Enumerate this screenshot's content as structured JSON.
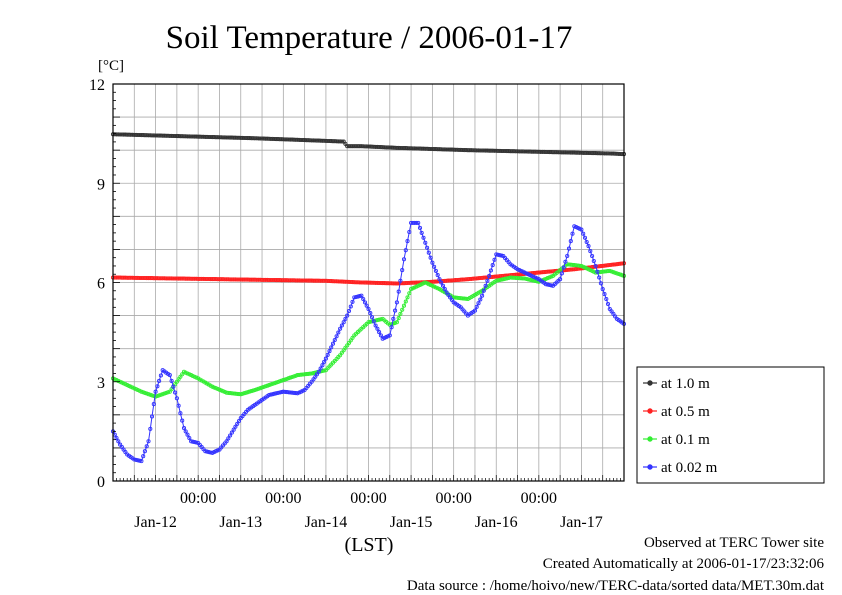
{
  "chart_data": {
    "type": "line",
    "title": "Soil Temperature / 2006-01-17",
    "yunit": "[°C]",
    "xlabel": "(LST)",
    "ylim": [
      0,
      12
    ],
    "yticks": [
      0,
      3,
      6,
      9,
      12
    ],
    "xlim_hours": [
      0,
      144
    ],
    "xtick_labels": [
      "00:00",
      "00:00",
      "00:00",
      "00:00",
      "00:00"
    ],
    "xday_labels": [
      "Jan-12",
      "Jan-13",
      "Jan-14",
      "Jan-15",
      "Jan-16",
      "Jan-17"
    ],
    "grid": true,
    "legend_position": "right",
    "series": [
      {
        "name": "at 1.0 m",
        "color": "#333333",
        "x": [
          0,
          20,
          40,
          55,
          65,
          66,
          70,
          80,
          100,
          120,
          140,
          144
        ],
        "y": [
          10.48,
          10.42,
          10.36,
          10.3,
          10.26,
          10.12,
          10.12,
          10.07,
          10.0,
          9.95,
          9.9,
          9.88
        ]
      },
      {
        "name": "at 0.5 m",
        "color": "#ff2020",
        "x": [
          0,
          30,
          60,
          70,
          80,
          90,
          100,
          110,
          120,
          130,
          144
        ],
        "y": [
          6.15,
          6.1,
          6.05,
          6.0,
          5.97,
          6.02,
          6.1,
          6.2,
          6.3,
          6.4,
          6.58
        ]
      },
      {
        "name": "at 0.1 m",
        "color": "#33ee33",
        "x": [
          0,
          4,
          8,
          12,
          16,
          20,
          24,
          28,
          32,
          36,
          40,
          44,
          48,
          52,
          56,
          60,
          64,
          68,
          72,
          76,
          78,
          80,
          84,
          88,
          92,
          96,
          100,
          104,
          108,
          112,
          116,
          120,
          124,
          128,
          132,
          136,
          140,
          144
        ],
        "y": [
          3.1,
          2.9,
          2.7,
          2.55,
          2.7,
          3.3,
          3.1,
          2.85,
          2.67,
          2.62,
          2.75,
          2.9,
          3.05,
          3.2,
          3.25,
          3.35,
          3.8,
          4.4,
          4.8,
          4.9,
          4.72,
          4.8,
          5.8,
          6.0,
          5.8,
          5.55,
          5.5,
          5.75,
          6.05,
          6.15,
          6.12,
          6.02,
          6.2,
          6.55,
          6.5,
          6.3,
          6.35,
          6.2
        ]
      },
      {
        "name": "at 0.02 m",
        "color": "#3333ff",
        "x": [
          0,
          2,
          4,
          6,
          8,
          10,
          12,
          14,
          16,
          18,
          20,
          22,
          24,
          26,
          28,
          30,
          32,
          34,
          36,
          38,
          40,
          44,
          48,
          52,
          54,
          56,
          58,
          60,
          62,
          64,
          66,
          68,
          70,
          72,
          74,
          76,
          78,
          80,
          82,
          84,
          86,
          88,
          90,
          92,
          94,
          96,
          98,
          100,
          102,
          104,
          106,
          108,
          110,
          112,
          114,
          116,
          118,
          120,
          122,
          124,
          126,
          128,
          130,
          132,
          134,
          136,
          138,
          140,
          142,
          144
        ],
        "y": [
          1.5,
          1.1,
          0.8,
          0.65,
          0.6,
          1.2,
          2.7,
          3.35,
          3.2,
          2.5,
          1.6,
          1.2,
          1.15,
          0.9,
          0.85,
          0.95,
          1.2,
          1.55,
          1.9,
          2.15,
          2.3,
          2.6,
          2.7,
          2.65,
          2.75,
          3.0,
          3.3,
          3.7,
          4.15,
          4.6,
          5.0,
          5.55,
          5.6,
          5.2,
          4.7,
          4.3,
          4.4,
          5.4,
          6.7,
          7.8,
          7.8,
          7.2,
          6.6,
          6.1,
          5.7,
          5.4,
          5.25,
          5.0,
          5.15,
          5.6,
          6.2,
          6.85,
          6.8,
          6.55,
          6.4,
          6.3,
          6.2,
          6.1,
          5.95,
          5.9,
          6.1,
          6.8,
          7.7,
          7.6,
          7.1,
          6.5,
          5.8,
          5.2,
          4.9,
          4.75
        ]
      }
    ]
  },
  "footer": {
    "observed": "Observed at TERC Tower site",
    "created": "Created Automatically at 2006-01-17/23:32:06",
    "source": "Data source : /home/hoivo/new/TERC-data/sorted  data/MET.30m.dat"
  }
}
